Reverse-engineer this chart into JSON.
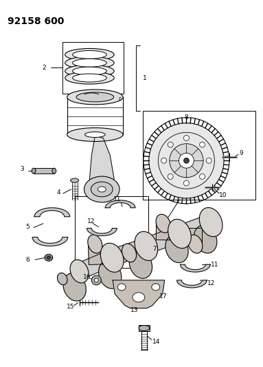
{
  "title": "92158 600",
  "bg_color": "#ffffff",
  "line_color": "#000000",
  "fig_width": 3.83,
  "fig_height": 5.33,
  "dpi": 100,
  "title_fontsize": 10,
  "label_fontsize": 6.5
}
